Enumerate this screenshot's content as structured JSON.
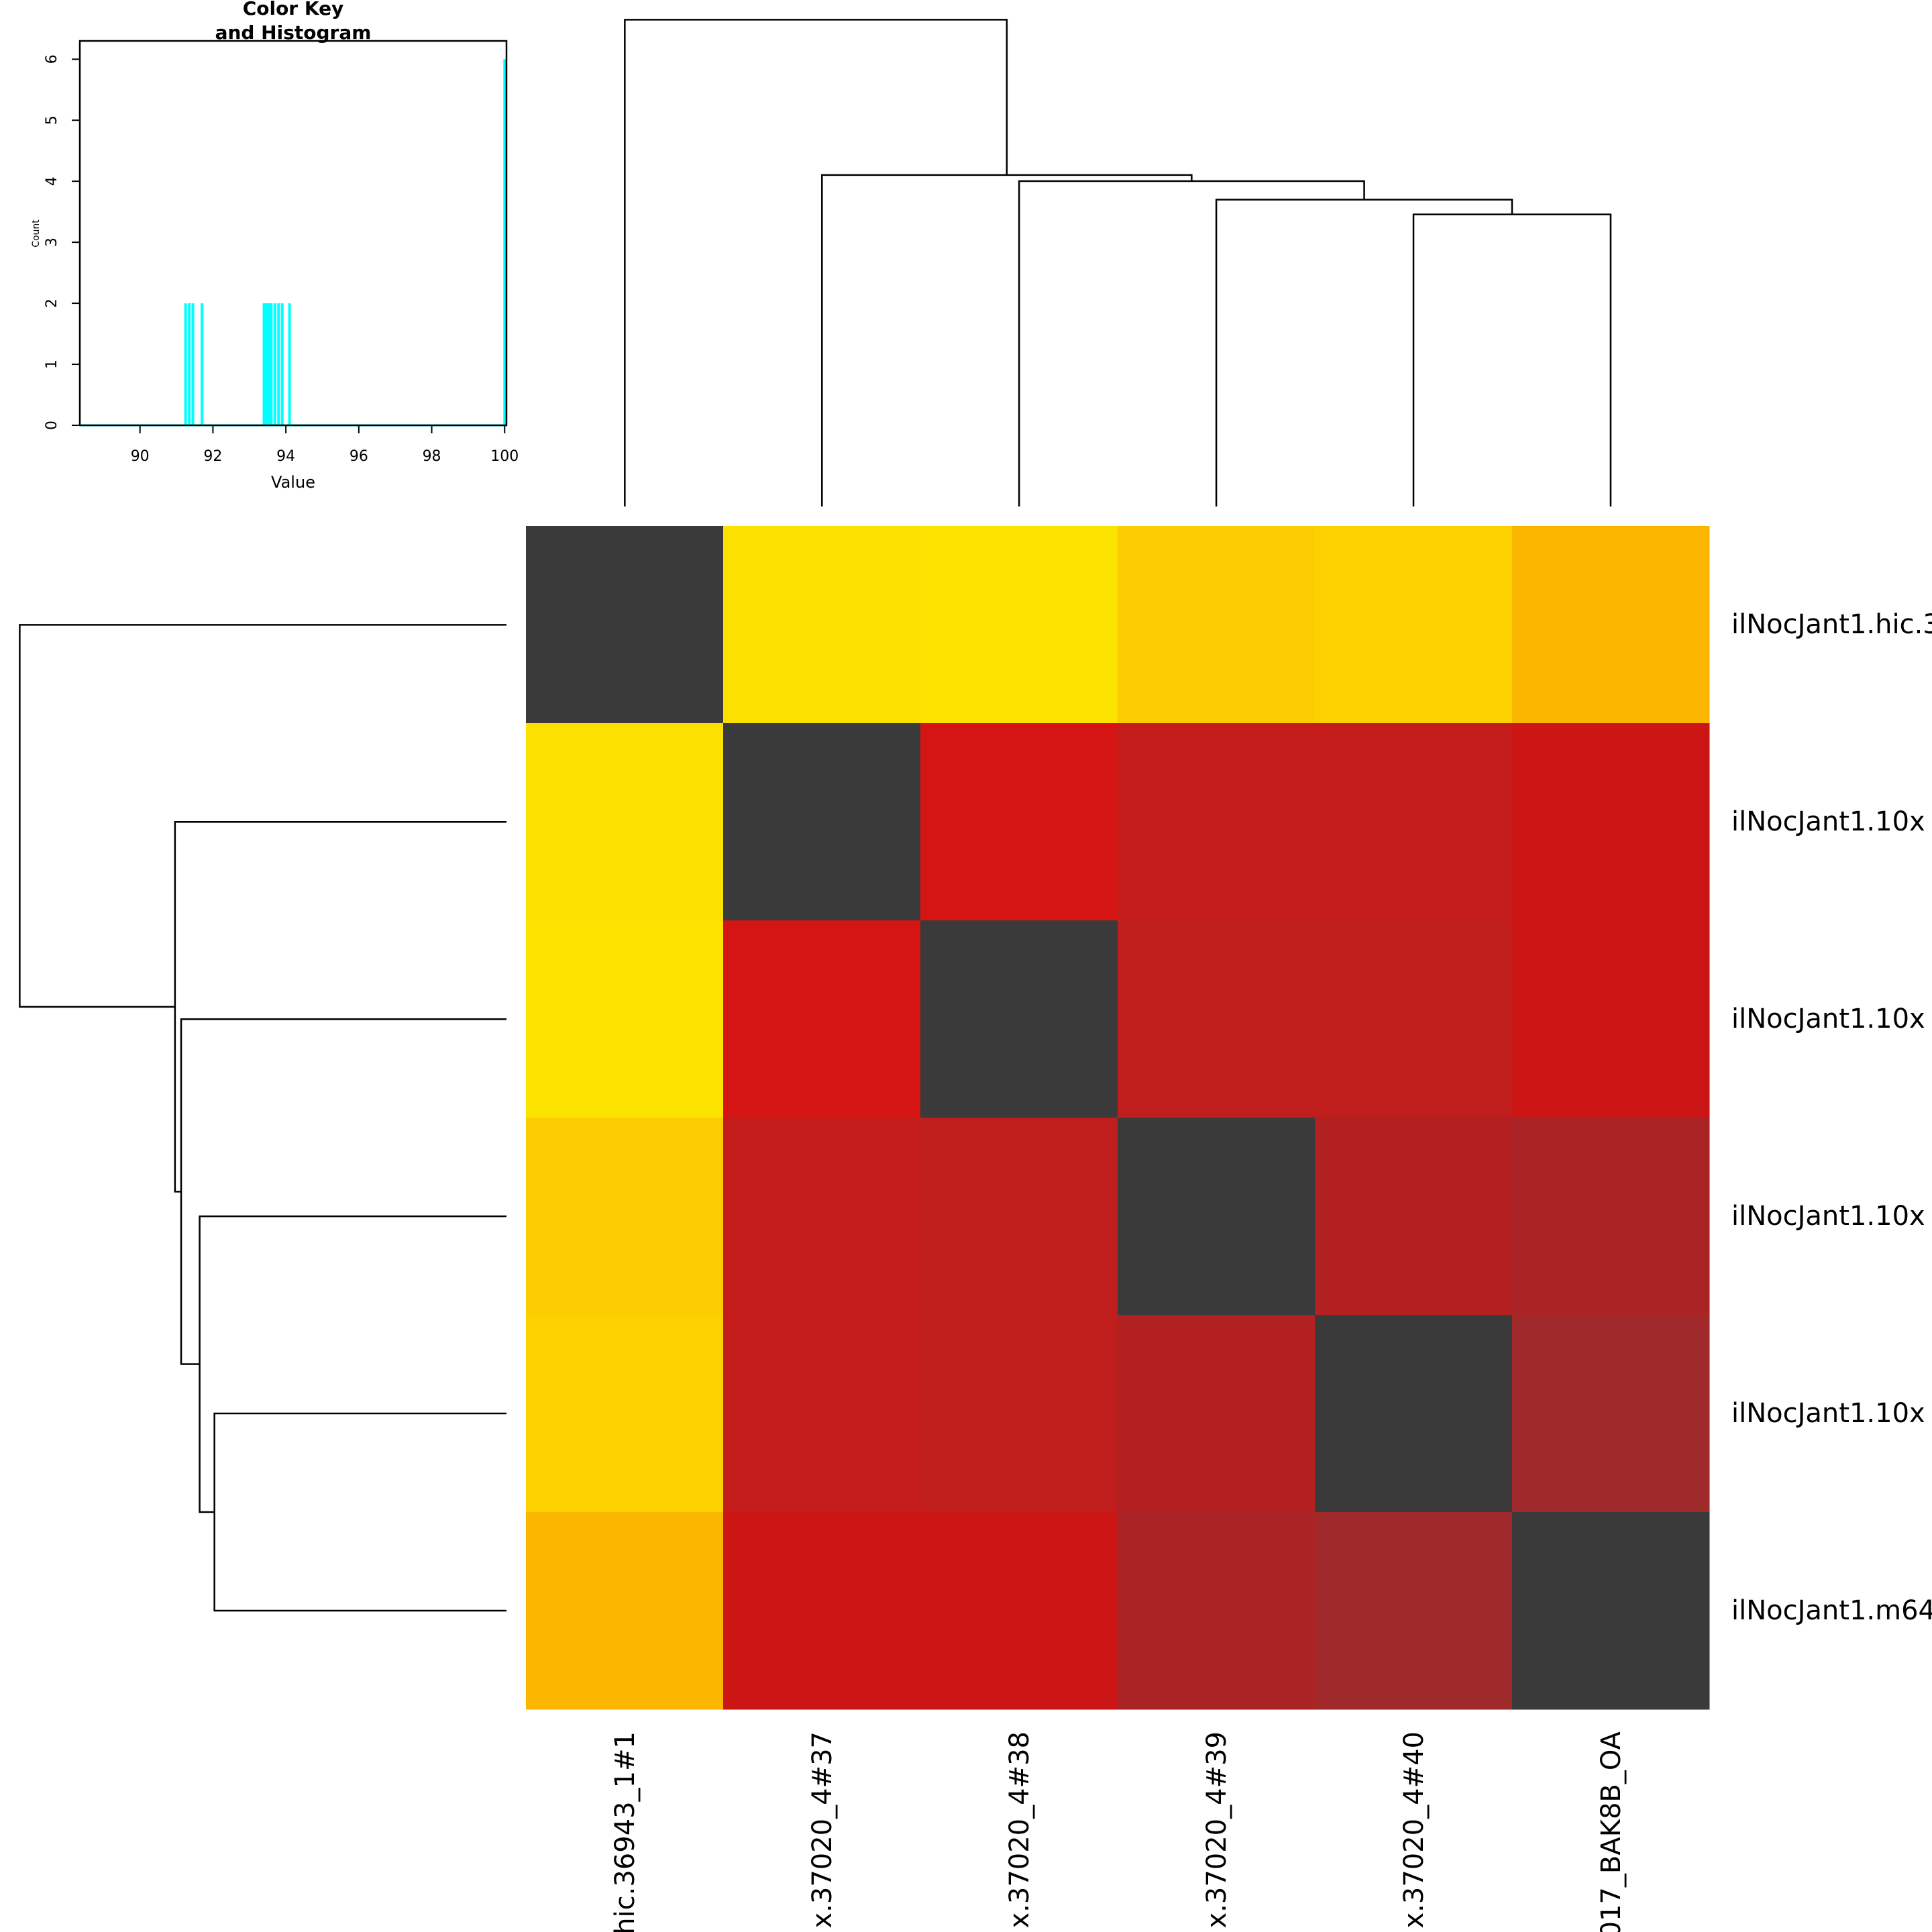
{
  "chart_data": [
    {
      "type": "spike",
      "title": "Color Key",
      "subtitle": "and Histogram",
      "x_label": "Value",
      "y_label": "Count",
      "x": [
        91.25,
        91.35,
        91.45,
        91.7,
        93.4,
        93.45,
        93.5,
        93.55,
        93.6,
        93.7,
        93.8,
        93.9,
        94.1,
        100
      ],
      "values": [
        2,
        2,
        2,
        2,
        2,
        2,
        2,
        2,
        2,
        2,
        2,
        2,
        2,
        6
      ],
      "color": "#00ffff",
      "xlim": [
        88.35,
        100.05
      ],
      "xticks": [
        90,
        92,
        94,
        96,
        98,
        100
      ],
      "ylim": [
        0,
        6.3
      ],
      "yticks": [
        0,
        1,
        2,
        3,
        4,
        5,
        6
      ]
    },
    {
      "type": "heatmap",
      "x": [
        "hic.36943_1#1",
        "x.37020_4#37",
        "x.37020_4#38",
        "x.37020_4#39",
        "x.37020_4#40",
        "017_BAK8B_OA"
      ],
      "y": [
        "ilNocJant1.hic.3",
        "ilNocJant1.10x",
        "ilNocJant1.10x",
        "ilNocJant1.10x",
        "ilNocJant1.10x",
        "ilNocJant1.m64"
      ],
      "values": [
        [
          100,
          91.4,
          91.3,
          91.6,
          91.5,
          91.7
        ],
        [
          91.4,
          100,
          93.4,
          93.7,
          93.7,
          93.5
        ],
        [
          91.3,
          93.4,
          100,
          93.8,
          93.8,
          93.5
        ],
        [
          91.6,
          93.7,
          93.8,
          100,
          93.9,
          94.0
        ],
        [
          91.5,
          93.7,
          93.8,
          93.9,
          100,
          94.1
        ],
        [
          91.7,
          93.5,
          93.5,
          94.0,
          94.1,
          100
        ]
      ],
      "colors": [
        [
          "#3a3a3a",
          "#fce000",
          "#fde300",
          "#fdcc00",
          "#fdd000",
          "#fbb600"
        ],
        [
          "#fce000",
          "#3a3a3a",
          "#d41513",
          "#c41c1b",
          "#c41c1b",
          "#cc1616"
        ],
        [
          "#fde300",
          "#d41513",
          "#3a3a3a",
          "#c01d1d",
          "#c01d1d",
          "#cc1616"
        ],
        [
          "#fdcc00",
          "#c41c1b",
          "#c01d1d",
          "#3a3a3a",
          "#b32021",
          "#aa2426"
        ],
        [
          "#fdd000",
          "#c41c1b",
          "#c01d1d",
          "#b32021",
          "#3a3a3a",
          "#a02a2b"
        ],
        [
          "#fbb600",
          "#cc1616",
          "#cc1616",
          "#aa2426",
          "#a02a2b",
          "#3a3a3a"
        ]
      ]
    }
  ]
}
